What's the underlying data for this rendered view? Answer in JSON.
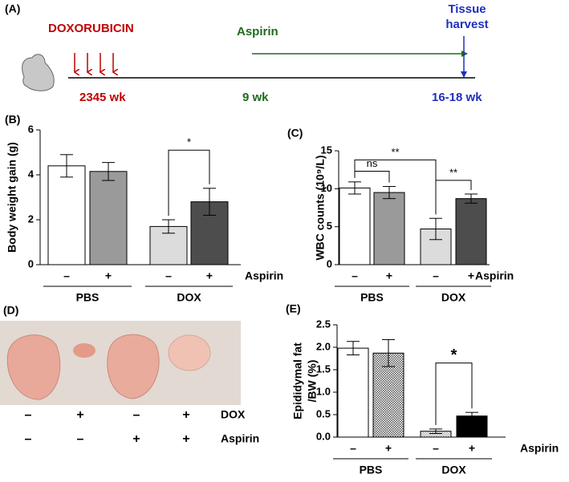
{
  "panel_a": {
    "panel": "(A)",
    "drug": "DOXORUBICIN",
    "treatment": "Aspirin",
    "endpoint": [
      "Tissue",
      "harvest"
    ],
    "drug_weeks": "2345 wk",
    "treatment_week": "9 wk",
    "endpoint_weeks": "16-18 wk"
  },
  "panel_d": {
    "panel": "(D)",
    "row_labels": [
      "DOX",
      "Aspirin"
    ],
    "rows": [
      [
        "–",
        "+",
        "–",
        "+"
      ],
      [
        "–",
        "–",
        "+",
        "+"
      ]
    ]
  },
  "chart_data": [
    {
      "type": "bar",
      "panel": "(B)",
      "y_label": [
        "Body weight gain (g)"
      ],
      "categories": [
        "–",
        "+",
        "–",
        "+"
      ],
      "row_label": "Aspirin",
      "groups": [
        "PBS",
        "DOX"
      ],
      "values": [
        4.4,
        4.15,
        1.7,
        2.8
      ],
      "errors": [
        0.5,
        0.4,
        0.3,
        0.6
      ],
      "colors": [
        "#ffffff",
        "#9a9a9a",
        "#dcdcdc",
        "#4d4d4d"
      ],
      "ylim": [
        0,
        6
      ],
      "yticks": [
        0,
        2,
        4,
        6
      ],
      "significance": [
        "*"
      ]
    },
    {
      "type": "bar",
      "panel": "(C)",
      "y_label": [
        "WBC counts (10⁹/L)"
      ],
      "categories": [
        "–",
        "+",
        "–",
        "+"
      ],
      "row_label": "Aspirin",
      "groups": [
        "PBS",
        "DOX"
      ],
      "values": [
        10.1,
        9.5,
        4.7,
        8.7
      ],
      "errors": [
        0.8,
        0.8,
        1.4,
        0.6
      ],
      "colors": [
        "#ffffff",
        "#9a9a9a",
        "#dcdcdc",
        "#4d4d4d"
      ],
      "ylim": [
        0,
        15
      ],
      "yticks": [
        0,
        5,
        10,
        15
      ],
      "significance": [
        "ns",
        "**",
        "**"
      ]
    },
    {
      "type": "bar",
      "panel": "(E)",
      "y_label": [
        "Epididymal fat",
        "/BW (%)"
      ],
      "categories": [
        "–",
        "+",
        "–",
        "+"
      ],
      "row_label": "Aspirin",
      "groups": [
        "PBS",
        "DOX"
      ],
      "values": [
        1.98,
        1.87,
        0.13,
        0.47
      ],
      "errors": [
        0.15,
        0.3,
        0.05,
        0.08
      ],
      "colors": [
        "#ffffff",
        "#888888",
        "#cccccc",
        "#000000"
      ],
      "hatch": [
        false,
        true,
        true,
        false
      ],
      "ylim": [
        0,
        2.5
      ],
      "yticks": [
        {
          "value": 0,
          "label": "0.0"
        },
        {
          "value": 0.5,
          "label": "0.5"
        },
        {
          "value": 1,
          "label": "1.0"
        },
        {
          "value": 1.5,
          "label": "1.5"
        },
        {
          "value": 2,
          "label": "2.0"
        },
        {
          "value": 2.5,
          "label": "2.5"
        }
      ],
      "significance": [
        "*"
      ]
    }
  ]
}
